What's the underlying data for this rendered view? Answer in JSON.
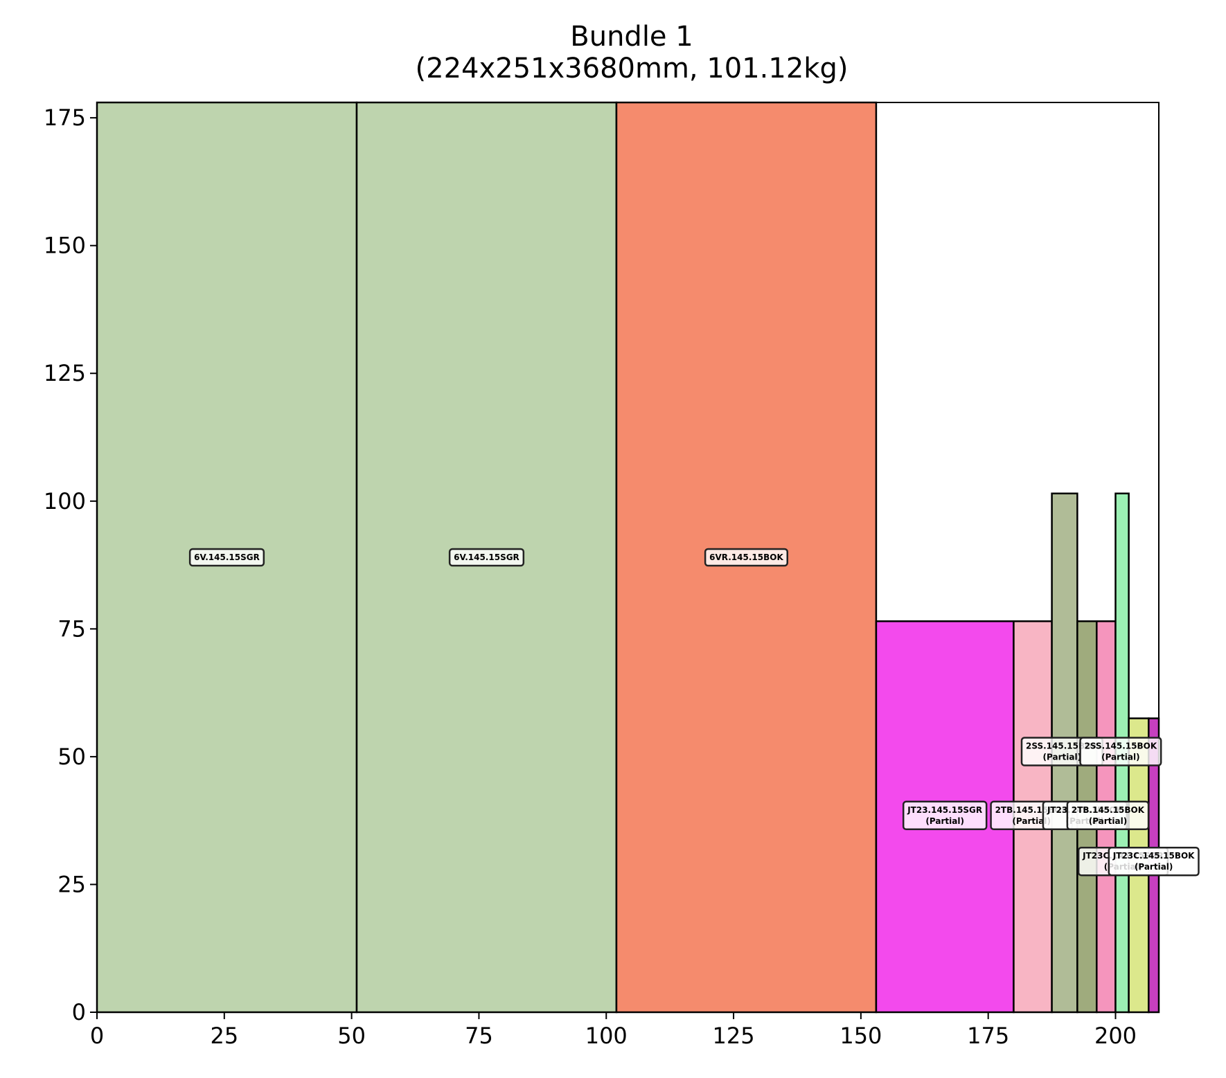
{
  "chart_data": {
    "type": "bar",
    "title": "Bundle 1",
    "subtitle": "(224x251x3680mm, 101.12kg)",
    "xlim": [
      0,
      208.5
    ],
    "ylim": [
      0,
      178
    ],
    "x_ticks": [
      "0",
      "25",
      "50",
      "75",
      "100",
      "125",
      "150",
      "175",
      "200"
    ],
    "y_ticks": [
      "0",
      "25",
      "50",
      "75",
      "100",
      "125",
      "150",
      "175"
    ],
    "grid": false,
    "legend": "none",
    "rectangles": [
      {
        "x": 0,
        "y": 0,
        "w": 51,
        "h": 178,
        "color": "#bed4ae"
      },
      {
        "x": 51,
        "y": 0,
        "w": 51,
        "h": 178,
        "color": "#bed4ae"
      },
      {
        "x": 102,
        "y": 0,
        "w": 51,
        "h": 178,
        "color": "#f58b6d"
      },
      {
        "x": 153,
        "y": 0,
        "w": 27,
        "h": 76.5,
        "color": "#f34aed"
      },
      {
        "x": 180,
        "y": 0,
        "w": 7.5,
        "h": 76.5,
        "color": "#f8b5c4"
      },
      {
        "x": 187.5,
        "y": 0,
        "w": 5,
        "h": 101.5,
        "color": "#b0bc97"
      },
      {
        "x": 192.5,
        "y": 0,
        "w": 3.8,
        "h": 76.5,
        "color": "#9fab7d"
      },
      {
        "x": 196.3,
        "y": 0,
        "w": 3.7,
        "h": 76.5,
        "color": "#f595bd"
      },
      {
        "x": 200,
        "y": 0,
        "w": 2.6,
        "h": 101.5,
        "color": "#9cf0b4"
      },
      {
        "x": 202.6,
        "y": 0,
        "w": 3.9,
        "h": 57.5,
        "color": "#dce88c"
      },
      {
        "x": 206.5,
        "y": 0,
        "w": 2,
        "h": 57.5,
        "color": "#c63fbf"
      }
    ],
    "labels": [
      {
        "text": "6V.145.15SGR",
        "x": 25.5,
        "y": 89
      },
      {
        "text": "6V.145.15SGR",
        "x": 76.5,
        "y": 89
      },
      {
        "text": "6VR.145.15BOK",
        "x": 127.5,
        "y": 89
      },
      {
        "text": "2SS.145.15BOK",
        "sub": "(Partial)",
        "x": 189.5,
        "y": 51
      },
      {
        "text": "2SS.145.15BOK",
        "sub": "(Partial)",
        "x": 201,
        "y": 51
      },
      {
        "text": "JT23.145.15SGR",
        "sub": "(Partial)",
        "x": 166.5,
        "y": 38.5
      },
      {
        "text": "2TB.145.15BOK",
        "sub": "(Partial)",
        "x": 183.5,
        "y": 38.5
      },
      {
        "text": "JT23.145.15BOK",
        "sub": "(Partial)",
        "x": 194,
        "y": 38.5
      },
      {
        "text": "2TB.145.15BOK",
        "sub": "(Partial)",
        "x": 198.5,
        "y": 38.5
      },
      {
        "text": "JT23C.145.15SGR",
        "sub": "(Partial)",
        "x": 201.5,
        "y": 29.5
      },
      {
        "text": "JT23C.145.15BOK",
        "sub": "(Partial)",
        "x": 207.5,
        "y": 29.5
      }
    ]
  }
}
